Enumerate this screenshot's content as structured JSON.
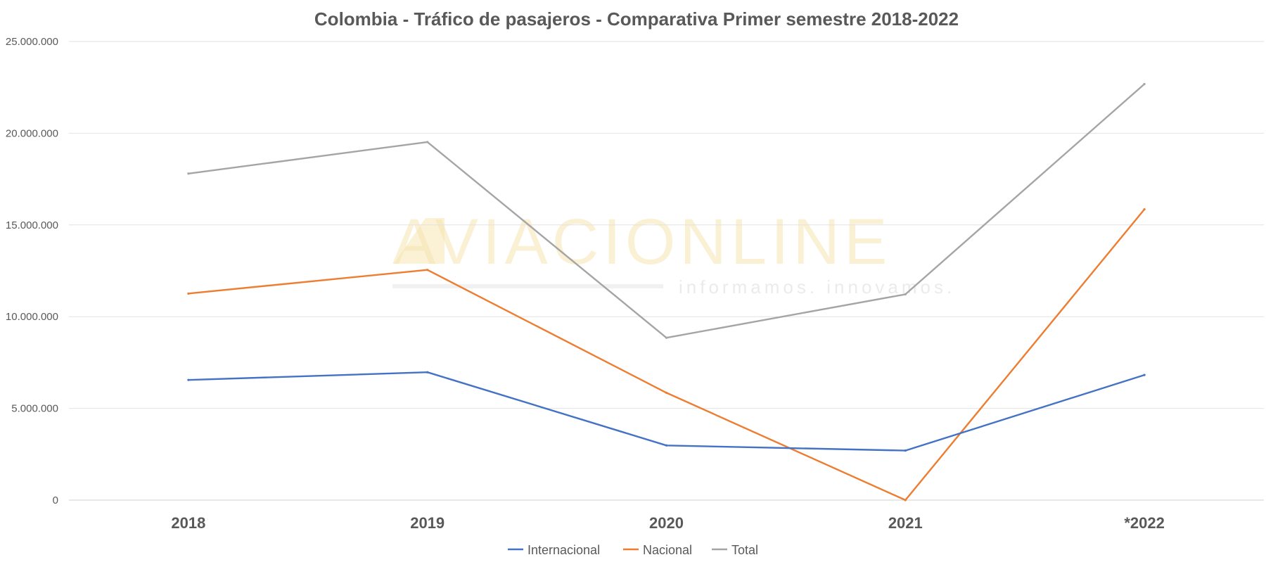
{
  "chart_data": {
    "type": "line",
    "title": "Colombia - Tráfico de pasajeros - Comparativa Primer semestre 2018-2022",
    "categories": [
      "2018",
      "2019",
      "2020",
      "2021",
      "*2022"
    ],
    "series": [
      {
        "name": "Internacional",
        "color": "#4472c4",
        "values": [
          6550000,
          6970000,
          2980000,
          2700000,
          6820000
        ]
      },
      {
        "name": "Nacional",
        "color": "#ed7d31",
        "values": [
          11260000,
          12550000,
          5850000,
          0,
          15850000
        ]
      },
      {
        "name": "Total",
        "color": "#a5a5a5",
        "values": [
          17800000,
          19520000,
          8850000,
          11220000,
          22680000
        ]
      }
    ],
    "ylim": [
      0,
      25000000
    ],
    "yticks": [
      "0",
      "5.000.000",
      "10.000.000",
      "15.000.000",
      "20.000.000",
      "25.000.000"
    ],
    "xlabel": "",
    "ylabel": "",
    "grid": true,
    "legend_position": "bottom"
  },
  "watermark": {
    "brand": "AVIACIONLINE",
    "tagline": "informamos. innovamos."
  }
}
